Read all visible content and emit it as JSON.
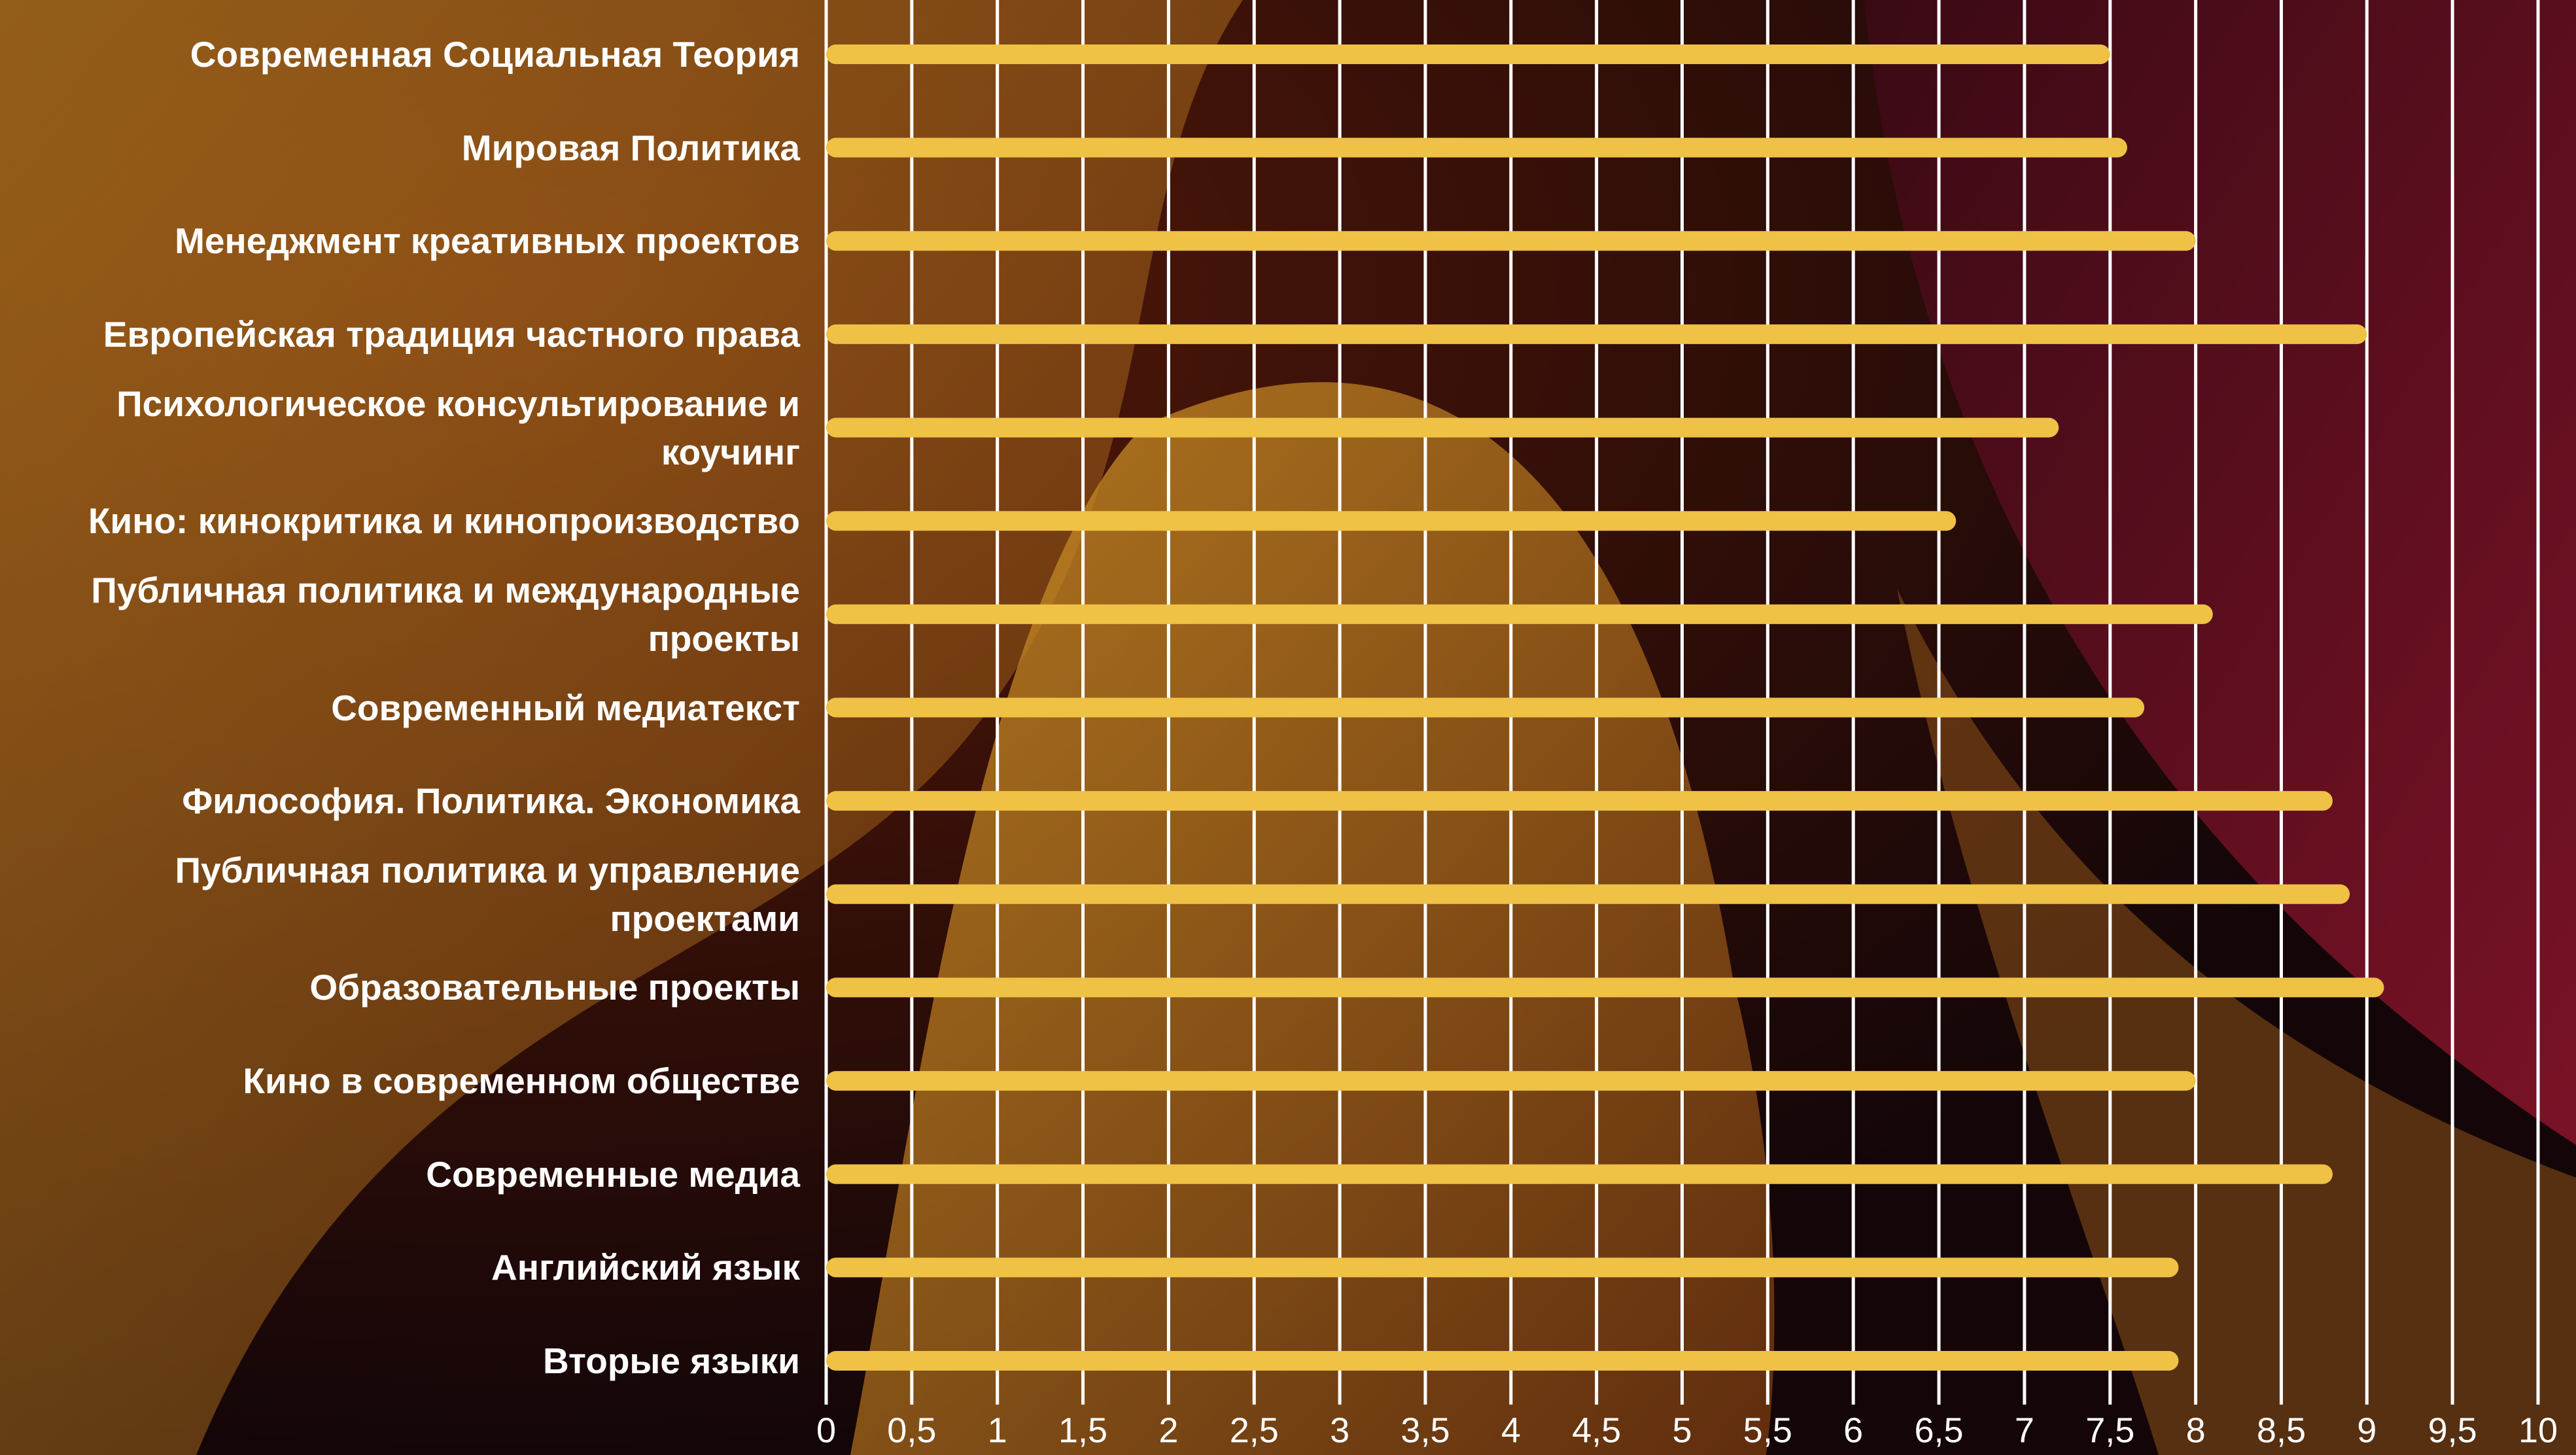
{
  "chart_data": {
    "type": "bar",
    "orientation": "horizontal",
    "color": "#efc144",
    "grid": true,
    "categories": [
      "Современная Социальная Теория",
      "Мировая Политика",
      "Менеджмент креативных проектов",
      "Европейская традиция частного права",
      "Психологическое консультирование и коучинг",
      "Кино: кинокритика и кинопроизводство",
      "Публичная политика и международные проекты",
      "Современный медиатекст",
      "Философия. Политика. Экономика",
      "Публичная политика и управление проектами",
      "Образовательные проекты",
      "Кино в современном обществе",
      "Современные медиа",
      "Английский язык",
      "Вторые языки"
    ],
    "values": [
      7.5,
      7.6,
      8.0,
      9.0,
      7.2,
      6.6,
      8.1,
      7.7,
      8.8,
      8.9,
      9.1,
      8.0,
      8.8,
      7.9,
      7.9
    ],
    "xlim": [
      0,
      10
    ],
    "xticks": [
      0,
      {
        "value": 0.5,
        "label": "0,5"
      },
      1,
      {
        "value": 1.5,
        "label": "1,5"
      },
      2,
      {
        "value": 2.5,
        "label": "2,5"
      },
      3,
      {
        "value": 3.5,
        "label": "3,5"
      },
      4,
      {
        "value": 4.5,
        "label": "4,5"
      },
      5,
      {
        "value": 5.5,
        "label": "5,5"
      },
      6,
      {
        "value": 6.5,
        "label": "6,5"
      },
      7,
      {
        "value": 7.5,
        "label": "7,5"
      },
      8,
      {
        "value": 8.5,
        "label": "8,5"
      },
      9,
      {
        "value": 9.5,
        "label": "9,5"
      },
      10
    ]
  }
}
